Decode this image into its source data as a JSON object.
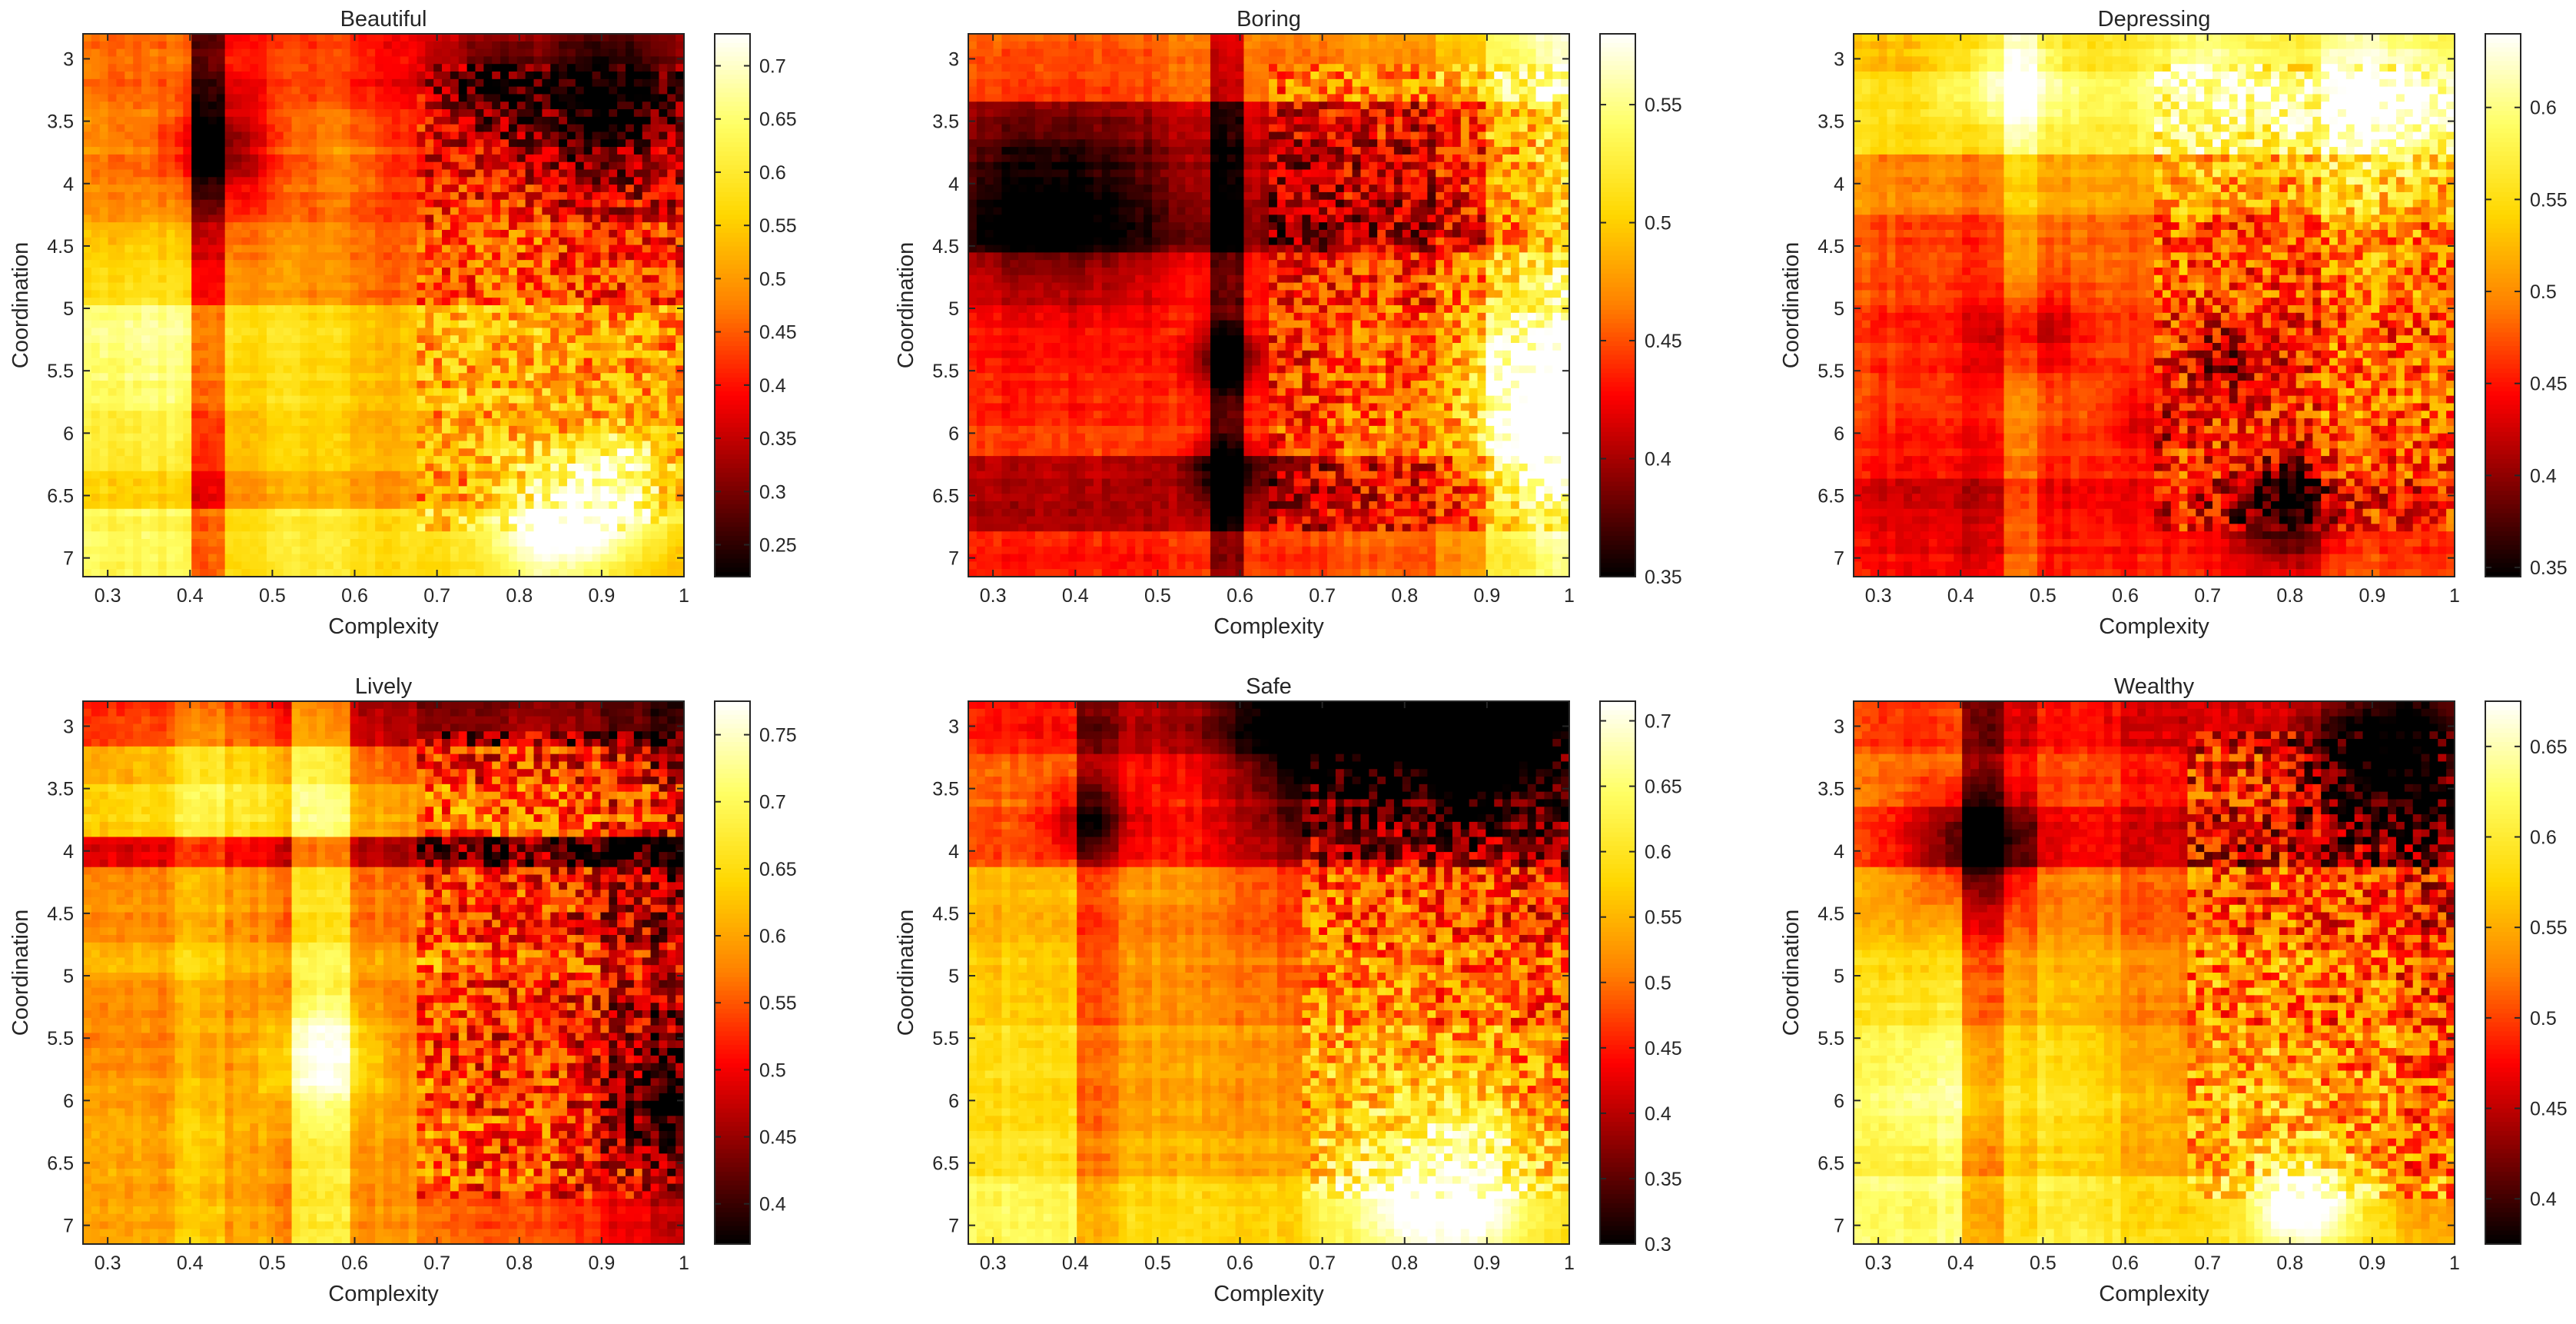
{
  "figure": {
    "rows": 2,
    "cols": 3
  },
  "colormap": {
    "name": "hot",
    "stops": [
      "#000000",
      "#800000",
      "#ff0000",
      "#ff8000",
      "#ffd700",
      "#ffff66",
      "#ffffff"
    ]
  },
  "chart_data": [
    {
      "type": "heatmap",
      "title": "Beautiful",
      "xlabel": "Complexity",
      "ylabel": "Coordination",
      "xlim": [
        0.27,
        1.0
      ],
      "ylim": [
        2.8,
        7.15
      ],
      "xticks": [
        "0.3",
        "0.4",
        "0.5",
        "0.6",
        "0.7",
        "0.8",
        "0.9",
        "1"
      ],
      "yticks": [
        "3",
        "3.5",
        "4",
        "4.5",
        "5",
        "5.5",
        "6",
        "6.5",
        "7"
      ],
      "colorbar": {
        "min": 0.22,
        "max": 0.73,
        "ticks": [
          "0.25",
          "0.3",
          "0.35",
          "0.4",
          "0.45",
          "0.5",
          "0.55",
          "0.6",
          "0.65",
          "0.7"
        ]
      },
      "pattern": {
        "base": 0.47,
        "xBands": [
          [
            0.0,
            0.18,
            0.06
          ],
          [
            0.18,
            0.23,
            -0.12
          ],
          [
            0.23,
            0.3,
            0.0
          ],
          [
            0.3,
            0.45,
            0.03
          ],
          [
            0.45,
            0.62,
            0.0
          ],
          [
            0.62,
            0.78,
            0.0
          ],
          [
            0.78,
            0.9,
            -0.02
          ],
          [
            0.9,
            1.0,
            -0.03
          ]
        ],
        "yBands": [
          [
            0.0,
            0.12,
            -0.07
          ],
          [
            0.12,
            0.22,
            -0.05
          ],
          [
            0.22,
            0.35,
            -0.06
          ],
          [
            0.35,
            0.5,
            -0.02
          ],
          [
            0.5,
            0.68,
            0.06
          ],
          [
            0.68,
            0.8,
            0.05
          ],
          [
            0.8,
            0.88,
            0.02
          ],
          [
            0.88,
            1.0,
            0.1
          ]
        ],
        "blobs": [
          [
            0.88,
            0.12,
            0.09,
            -0.2
          ],
          [
            0.68,
            0.1,
            0.08,
            -0.14
          ],
          [
            0.22,
            0.2,
            0.06,
            -0.12
          ],
          [
            0.8,
            0.9,
            0.08,
            0.22
          ],
          [
            0.9,
            0.82,
            0.06,
            0.18
          ],
          [
            0.12,
            0.55,
            0.14,
            0.08
          ],
          [
            0.45,
            0.25,
            0.06,
            0.05
          ]
        ],
        "noise": 0.11,
        "noiseStart": 0.55,
        "seed": 11
      }
    },
    {
      "type": "heatmap",
      "title": "Boring",
      "xlabel": "Complexity",
      "ylabel": "Coordination",
      "xlim": [
        0.27,
        1.0
      ],
      "ylim": [
        2.8,
        7.15
      ],
      "xticks": [
        "0.3",
        "0.4",
        "0.5",
        "0.6",
        "0.7",
        "0.8",
        "0.9",
        "1"
      ],
      "yticks": [
        "3",
        "3.5",
        "4",
        "4.5",
        "5",
        "5.5",
        "6",
        "6.5",
        "7"
      ],
      "colorbar": {
        "min": 0.35,
        "max": 0.58,
        "ticks": [
          "0.35",
          "0.4",
          "0.45",
          "0.5",
          "0.55"
        ]
      },
      "pattern": {
        "base": 0.445,
        "xBands": [
          [
            0.0,
            0.33,
            -0.01
          ],
          [
            0.33,
            0.4,
            0.0
          ],
          [
            0.4,
            0.46,
            -0.05
          ],
          [
            0.46,
            0.62,
            0.0
          ],
          [
            0.62,
            0.78,
            0.01
          ],
          [
            0.78,
            0.86,
            0.03
          ],
          [
            0.86,
            0.94,
            0.08
          ],
          [
            0.94,
            1.0,
            0.1
          ]
        ],
        "yBands": [
          [
            0.0,
            0.12,
            0.02
          ],
          [
            0.12,
            0.2,
            -0.03
          ],
          [
            0.2,
            0.3,
            -0.04
          ],
          [
            0.3,
            0.4,
            -0.05
          ],
          [
            0.4,
            0.5,
            -0.01
          ],
          [
            0.5,
            0.72,
            0.0
          ],
          [
            0.72,
            0.78,
            0.01
          ],
          [
            0.78,
            0.92,
            -0.03
          ],
          [
            0.92,
            1.0,
            0.0
          ]
        ],
        "blobs": [
          [
            0.14,
            0.32,
            0.12,
            -0.05
          ],
          [
            0.43,
            0.6,
            0.045,
            -0.08
          ],
          [
            0.43,
            0.8,
            0.05,
            -0.07
          ],
          [
            0.95,
            0.65,
            0.08,
            0.08
          ],
          [
            0.97,
            0.8,
            0.07,
            0.07
          ]
        ],
        "noise": 0.05,
        "noiseStart": 0.5,
        "seed": 23
      }
    },
    {
      "type": "heatmap",
      "title": "Depressing",
      "xlabel": "Complexity",
      "ylabel": "Coordination",
      "xlim": [
        0.27,
        1.0
      ],
      "ylim": [
        2.8,
        7.15
      ],
      "xticks": [
        "0.3",
        "0.4",
        "0.5",
        "0.6",
        "0.7",
        "0.8",
        "0.9",
        "1"
      ],
      "yticks": [
        "3",
        "3.5",
        "4",
        "4.5",
        "5",
        "5.5",
        "6",
        "6.5",
        "7"
      ],
      "colorbar": {
        "min": 0.345,
        "max": 0.64,
        "ticks": [
          "0.35",
          "0.4",
          "0.45",
          "0.5",
          "0.55",
          "0.6"
        ]
      },
      "pattern": {
        "base": 0.5,
        "xBands": [
          [
            0.0,
            0.18,
            -0.01
          ],
          [
            0.18,
            0.25,
            -0.02
          ],
          [
            0.25,
            0.3,
            0.03
          ],
          [
            0.3,
            0.45,
            0.0
          ],
          [
            0.45,
            0.62,
            0.0
          ],
          [
            0.62,
            0.78,
            -0.01
          ],
          [
            0.78,
            0.88,
            0.02
          ],
          [
            0.88,
            1.0,
            0.01
          ]
        ],
        "yBands": [
          [
            0.0,
            0.07,
            0.04
          ],
          [
            0.07,
            0.22,
            0.06
          ],
          [
            0.22,
            0.33,
            0.01
          ],
          [
            0.33,
            0.5,
            -0.02
          ],
          [
            0.5,
            0.72,
            -0.03
          ],
          [
            0.72,
            0.82,
            -0.04
          ],
          [
            0.82,
            0.9,
            -0.06
          ],
          [
            0.9,
            1.0,
            -0.05
          ]
        ],
        "blobs": [
          [
            0.88,
            0.12,
            0.1,
            0.09
          ],
          [
            0.6,
            0.08,
            0.1,
            0.07
          ],
          [
            0.26,
            0.08,
            0.07,
            0.08
          ],
          [
            0.72,
            0.88,
            0.06,
            -0.1
          ],
          [
            0.62,
            0.6,
            0.05,
            -0.06
          ],
          [
            0.3,
            0.55,
            0.06,
            -0.05
          ],
          [
            0.5,
            0.7,
            0.05,
            -0.04
          ]
        ],
        "noise": 0.07,
        "noiseStart": 0.5,
        "seed": 37
      }
    },
    {
      "type": "heatmap",
      "title": "Lively",
      "xlabel": "Complexity",
      "ylabel": "Coordination",
      "xlim": [
        0.27,
        1.0
      ],
      "ylim": [
        2.8,
        7.15
      ],
      "xticks": [
        "0.3",
        "0.4",
        "0.5",
        "0.6",
        "0.7",
        "0.8",
        "0.9",
        "1"
      ],
      "yticks": [
        "3",
        "3.5",
        "4",
        "4.5",
        "5",
        "5.5",
        "6",
        "6.5",
        "7"
      ],
      "colorbar": {
        "min": 0.37,
        "max": 0.775,
        "ticks": [
          "0.4",
          "0.45",
          "0.5",
          "0.55",
          "0.6",
          "0.65",
          "0.7",
          "0.75"
        ]
      },
      "pattern": {
        "base": 0.58,
        "xBands": [
          [
            0.0,
            0.15,
            0.0
          ],
          [
            0.15,
            0.24,
            0.03
          ],
          [
            0.24,
            0.3,
            0.0
          ],
          [
            0.3,
            0.35,
            -0.02
          ],
          [
            0.35,
            0.45,
            0.08
          ],
          [
            0.45,
            0.55,
            -0.01
          ],
          [
            0.55,
            0.66,
            -0.04
          ],
          [
            0.66,
            0.78,
            -0.05
          ],
          [
            0.78,
            0.86,
            -0.07
          ],
          [
            0.86,
            0.94,
            -0.1
          ],
          [
            0.94,
            1.0,
            -0.13
          ]
        ],
        "yBands": [
          [
            0.0,
            0.08,
            -0.06
          ],
          [
            0.08,
            0.15,
            0.02
          ],
          [
            0.15,
            0.25,
            0.05
          ],
          [
            0.25,
            0.3,
            -0.1
          ],
          [
            0.3,
            0.45,
            0.0
          ],
          [
            0.45,
            0.52,
            0.03
          ],
          [
            0.52,
            0.7,
            0.0
          ],
          [
            0.7,
            1.0,
            0.02
          ]
        ],
        "blobs": [
          [
            0.4,
            0.65,
            0.07,
            0.13
          ],
          [
            0.3,
            0.12,
            0.13,
            0.06
          ],
          [
            0.96,
            0.75,
            0.06,
            -0.12
          ],
          [
            0.5,
            0.02,
            0.15,
            -0.06
          ]
        ],
        "noise": 0.1,
        "noiseStart": 0.55,
        "seed": 53
      }
    },
    {
      "type": "heatmap",
      "title": "Safe",
      "xlabel": "Complexity",
      "ylabel": "Coordination",
      "xlim": [
        0.27,
        1.0
      ],
      "ylim": [
        2.8,
        7.15
      ],
      "xticks": [
        "0.3",
        "0.4",
        "0.5",
        "0.6",
        "0.7",
        "0.8",
        "0.9",
        "1"
      ],
      "yticks": [
        "3",
        "3.5",
        "4",
        "4.5",
        "5",
        "5.5",
        "6",
        "6.5",
        "7"
      ],
      "colorbar": {
        "min": 0.3,
        "max": 0.715,
        "ticks": [
          "0.3",
          "0.35",
          "0.4",
          "0.45",
          "0.5",
          "0.55",
          "0.6",
          "0.65",
          "0.7"
        ]
      },
      "pattern": {
        "base": 0.5,
        "xBands": [
          [
            0.0,
            0.18,
            0.05
          ],
          [
            0.18,
            0.25,
            -0.04
          ],
          [
            0.25,
            0.3,
            0.0
          ],
          [
            0.3,
            0.45,
            0.0
          ],
          [
            0.45,
            0.55,
            -0.02
          ],
          [
            0.55,
            0.78,
            0.0
          ],
          [
            0.78,
            0.9,
            -0.02
          ],
          [
            0.9,
            1.0,
            -0.03
          ]
        ],
        "yBands": [
          [
            0.0,
            0.1,
            -0.1
          ],
          [
            0.1,
            0.2,
            -0.05
          ],
          [
            0.2,
            0.3,
            -0.07
          ],
          [
            0.3,
            0.45,
            0.0
          ],
          [
            0.45,
            0.6,
            0.02
          ],
          [
            0.6,
            0.8,
            0.04
          ],
          [
            0.8,
            0.88,
            0.05
          ],
          [
            0.88,
            1.0,
            0.08
          ]
        ],
        "blobs": [
          [
            0.86,
            0.08,
            0.1,
            -0.22
          ],
          [
            0.62,
            0.06,
            0.12,
            -0.18
          ],
          [
            0.2,
            0.22,
            0.05,
            -0.1
          ],
          [
            0.8,
            0.9,
            0.12,
            0.18
          ],
          [
            0.3,
            0.3,
            0.1,
            0.03
          ]
        ],
        "noise": 0.1,
        "noiseStart": 0.55,
        "seed": 71
      }
    },
    {
      "type": "heatmap",
      "title": "Wealthy",
      "xlabel": "Complexity",
      "ylabel": "Coordination",
      "xlim": [
        0.27,
        1.0
      ],
      "ylim": [
        2.8,
        7.15
      ],
      "xticks": [
        "0.3",
        "0.4",
        "0.5",
        "0.6",
        "0.7",
        "0.8",
        "0.9",
        "1"
      ],
      "yticks": [
        "3",
        "3.5",
        "4",
        "4.5",
        "5",
        "5.5",
        "6",
        "6.5",
        "7"
      ],
      "colorbar": {
        "min": 0.375,
        "max": 0.675,
        "ticks": [
          "0.4",
          "0.45",
          "0.5",
          "0.55",
          "0.6",
          "0.65"
        ]
      },
      "pattern": {
        "base": 0.51,
        "xBands": [
          [
            0.0,
            0.18,
            0.04
          ],
          [
            0.18,
            0.25,
            -0.04
          ],
          [
            0.25,
            0.3,
            0.0
          ],
          [
            0.3,
            0.45,
            0.02
          ],
          [
            0.45,
            0.62,
            0.0
          ],
          [
            0.62,
            0.78,
            0.0
          ],
          [
            0.78,
            0.9,
            -0.01
          ],
          [
            0.9,
            1.0,
            -0.03
          ]
        ],
        "yBands": [
          [
            0.0,
            0.1,
            -0.05
          ],
          [
            0.1,
            0.2,
            -0.03
          ],
          [
            0.2,
            0.3,
            -0.05
          ],
          [
            0.3,
            0.45,
            0.0
          ],
          [
            0.45,
            0.6,
            0.02
          ],
          [
            0.6,
            0.8,
            0.04
          ],
          [
            0.8,
            0.88,
            0.04
          ],
          [
            0.88,
            1.0,
            0.07
          ]
        ],
        "blobs": [
          [
            0.88,
            0.12,
            0.08,
            -0.14
          ],
          [
            0.2,
            0.26,
            0.07,
            -0.1
          ],
          [
            0.75,
            0.92,
            0.06,
            0.15
          ],
          [
            0.15,
            0.7,
            0.13,
            0.05
          ]
        ],
        "noise": 0.08,
        "noiseStart": 0.55,
        "seed": 89
      }
    }
  ]
}
